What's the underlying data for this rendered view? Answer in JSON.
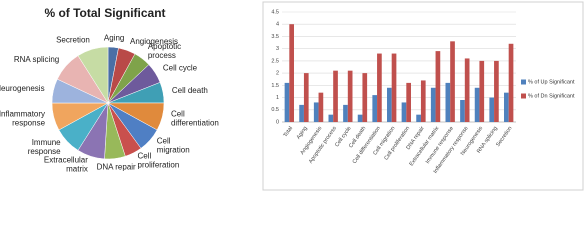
{
  "chart_data": [
    {
      "type": "pie",
      "title": "% of Total Significant",
      "categories": [
        "Aging",
        "Angiogenesis",
        "Apoptotic process",
        "Cell cycle",
        "Cell death",
        "Cell differentiation",
        "Cell migration",
        "Cell proliferation",
        "DNA repair",
        "Extracellular matrix",
        "Immune response",
        "Inflammatory response",
        "Neurogenesis",
        "RNA splicing",
        "Secretion"
      ],
      "values": [
        3,
        5,
        5,
        6,
        6,
        8,
        7,
        5,
        6,
        8,
        8,
        8,
        7,
        9,
        9
      ],
      "colors": [
        "#4a6fa5",
        "#b94a48",
        "#7fa34a",
        "#6e5a9c",
        "#3f9fb5",
        "#e08a3c",
        "#4f7fc4",
        "#c9504d",
        "#98b95a",
        "#8b74b3",
        "#4ab0c8",
        "#f0a55e",
        "#9db3dd",
        "#e8b4b2",
        "#c6dca4"
      ]
    },
    {
      "type": "bar",
      "categories": [
        "Total",
        "Aging",
        "Angiogenesis",
        "Apoptotic process",
        "Cell cycle",
        "Cell death",
        "Cell differentiation",
        "Cell migration",
        "Cell proliferation",
        "DNA repair",
        "Extracellular matrix",
        "Immune response",
        "Inflammatory response",
        "Neurogenesis",
        "RNA splicing",
        "Secretion"
      ],
      "series": [
        {
          "name": "% of Up Significant",
          "color": "#4f81bd",
          "values": [
            1.6,
            0.7,
            0.8,
            0.3,
            0.7,
            0.3,
            1.1,
            1.4,
            0.8,
            0.3,
            1.4,
            1.6,
            0.9,
            1.4,
            1.0,
            1.2
          ]
        },
        {
          "name": "% of Dn Significant",
          "color": "#c0504d",
          "values": [
            4.0,
            2.0,
            1.2,
            2.1,
            2.1,
            2.0,
            2.8,
            2.8,
            1.6,
            1.7,
            2.9,
            3.3,
            2.6,
            2.5,
            2.5,
            3.2
          ]
        }
      ],
      "ylim": [
        0,
        4.5
      ],
      "yticks": [
        0,
        0.5,
        1,
        1.5,
        2,
        2.5,
        3,
        3.5,
        4,
        4.5
      ],
      "grid": true
    }
  ]
}
